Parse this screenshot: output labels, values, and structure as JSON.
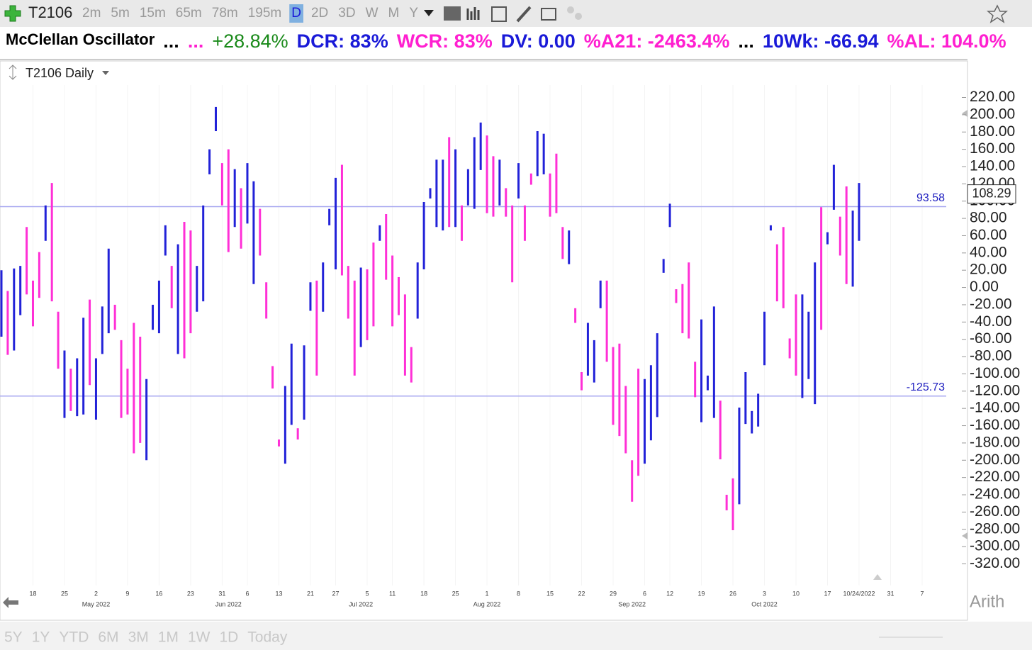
{
  "toolbar": {
    "symbol": "T2106",
    "intervals": [
      "2m",
      "5m",
      "15m",
      "65m",
      "78m",
      "195m",
      "D",
      "2D",
      "3D",
      "W",
      "M",
      "Y"
    ],
    "active_interval_index": 6
  },
  "quote_bar": [
    {
      "text": "McClellan Oscillator",
      "color": "#000000"
    },
    {
      "text": "...",
      "color": "#000000"
    },
    {
      "text": "...",
      "color": "#ff1fd0"
    },
    {
      "text": "+28.84%",
      "color": "#1a8a1a"
    },
    {
      "text": "DCR: 83%",
      "color": "#1a1ad8"
    },
    {
      "text": "WCR: 83%",
      "color": "#ff1fd0"
    },
    {
      "text": "DV: 0.00",
      "color": "#1a1ad8"
    },
    {
      "text": "%A21: -2463.4%",
      "color": "#ff1fd0"
    },
    {
      "text": "...",
      "color": "#000000"
    },
    {
      "text": "10Wk: -66.94",
      "color": "#1a1ad8"
    },
    {
      "text": "%AL: 104.0%",
      "color": "#ff1fd0"
    }
  ],
  "chart_data": {
    "type": "hlbar",
    "title": "T2106 Daily",
    "categories": [
      null,
      null,
      null,
      null,
      null,
      null,
      null,
      null,
      null,
      null,
      null,
      null,
      null,
      null,
      null,
      null,
      null,
      null,
      null,
      null,
      null,
      null,
      null,
      null,
      null,
      null,
      null,
      null,
      null,
      null,
      null,
      null,
      null,
      null,
      null,
      null,
      null,
      null,
      null,
      null,
      null,
      null,
      null,
      null,
      null,
      null,
      null,
      null,
      null,
      null,
      null,
      null,
      null,
      null,
      null,
      null,
      null,
      null,
      null,
      null,
      null,
      null,
      null,
      null,
      null,
      null,
      null,
      null,
      null,
      null,
      null,
      null,
      null,
      null,
      null,
      null,
      null,
      null,
      null,
      null,
      null,
      null,
      null,
      null,
      null,
      null,
      null,
      null,
      null,
      null,
      null,
      null,
      null,
      null,
      null,
      null,
      null,
      null,
      null,
      null,
      null,
      null,
      null,
      null,
      null,
      null,
      null,
      null,
      null,
      null,
      null,
      null,
      null,
      null,
      null,
      null,
      null,
      null,
      null,
      null,
      null,
      null,
      null,
      null,
      null,
      null,
      null,
      null,
      null,
      null,
      null,
      null,
      null,
      null,
      null,
      null,
      null
    ],
    "high": [
      20,
      -4,
      22,
      25,
      70,
      8,
      41,
      95,
      121,
      -28,
      -73,
      -94,
      -82,
      -35,
      -14,
      -82,
      -22,
      45,
      -20,
      -61,
      -94,
      -41,
      -57,
      -106,
      -20,
      8,
      72,
      25,
      50,
      76,
      66,
      25,
      95,
      160,
      209,
      144,
      160,
      137,
      115,
      144,
      123,
      91,
      6,
      -91,
      -176,
      -114,
      -65,
      -163,
      -67,
      6,
      8,
      29,
      91,
      127,
      142,
      25,
      8,
      23,
      21,
      52,
      72,
      85,
      37,
      12,
      -8,
      -69,
      29,
      99,
      115,
      148,
      148,
      174,
      160,
      95,
      137,
      174,
      191,
      176,
      152,
      148,
      115,
      95,
      144,
      95,
      132,
      181,
      178,
      132,
      155,
      70,
      66,
      -24,
      -98,
      -41,
      -61,
      8,
      8,
      -69,
      -65,
      -114,
      -200,
      -94,
      -106,
      -90,
      -53,
      33,
      97,
      -2,
      4,
      29,
      -86,
      -37,
      -102,
      -22,
      -131,
      -240,
      -221,
      -139,
      -98,
      -143,
      -123,
      -28,
      72,
      50,
      70,
      -59,
      -8,
      -8,
      -28,
      29,
      93,
      64,
      142,
      82,
      117,
      89,
      121
    ],
    "low": [
      -57,
      -78,
      -73,
      -32,
      -8,
      -45,
      -12,
      54,
      -16,
      -94,
      -151,
      -143,
      -149,
      -147,
      -113,
      -153,
      -77,
      -53,
      -49,
      -151,
      -147,
      -192,
      -180,
      -200,
      -49,
      -53,
      37,
      -24,
      -77,
      -82,
      -53,
      -28,
      -16,
      131,
      181,
      95,
      41,
      70,
      45,
      74,
      4,
      37,
      -36,
      -117,
      -184,
      -204,
      -159,
      -176,
      -153,
      -27,
      -102,
      -28,
      72,
      21,
      14,
      -36,
      -102,
      -69,
      -61,
      -45,
      54,
      9,
      -45,
      -32,
      -102,
      -110,
      -36,
      21,
      103,
      70,
      66,
      70,
      70,
      54,
      95,
      91,
      136,
      86,
      82,
      95,
      82,
      6,
      103,
      54,
      119,
      129,
      131,
      82,
      86,
      33,
      27,
      -41,
      -119,
      -102,
      -110,
      -24,
      -86,
      -159,
      -172,
      -192,
      -248,
      -218,
      -204,
      -177,
      -150,
      17,
      70,
      -18,
      -53,
      -59,
      -127,
      -156,
      -119,
      -151,
      -199,
      -258,
      -281,
      -251,
      -158,
      -169,
      -161,
      -90,
      66,
      -16,
      -24,
      -82,
      -102,
      -128,
      -106,
      -135,
      -49,
      50,
      90,
      37,
      4,
      1,
      54
    ],
    "bar_colors": [
      "#2222d8",
      "#ff2fd6",
      "#2222d8",
      "#2222d8",
      "#ff2fd6",
      "#ff2fd6",
      "#ff2fd6",
      "#2222d8",
      "#ff2fd6",
      "#ff2fd6",
      "#2222d8",
      "#ff2fd6",
      "#2222d8",
      "#2222d8",
      "#ff2fd6",
      "#2222d8",
      "#2222d8",
      "#2222d8",
      "#ff2fd6",
      "#ff2fd6",
      "#ff2fd6",
      "#ff2fd6",
      "#ff2fd6",
      "#2222d8",
      "#2222d8",
      "#2222d8",
      "#2222d8",
      "#ff2fd6",
      "#2222d8",
      "#ff2fd6",
      "#ff2fd6",
      "#2222d8",
      "#2222d8",
      "#2222d8",
      "#2222d8",
      "#ff2fd6",
      "#ff2fd6",
      "#2222d8",
      "#ff2fd6",
      "#2222d8",
      "#2222d8",
      "#ff2fd6",
      "#ff2fd6",
      "#ff2fd6",
      "#ff2fd6",
      "#2222d8",
      "#2222d8",
      "#ff2fd6",
      "#2222d8",
      "#2222d8",
      "#ff2fd6",
      "#2222d8",
      "#2222d8",
      "#2222d8",
      "#ff2fd6",
      "#ff2fd6",
      "#ff2fd6",
      "#2222d8",
      "#ff2fd6",
      "#ff2fd6",
      "#2222d8",
      "#ff2fd6",
      "#ff2fd6",
      "#ff2fd6",
      "#ff2fd6",
      "#ff2fd6",
      "#2222d8",
      "#2222d8",
      "#2222d8",
      "#2222d8",
      "#2222d8",
      "#ff2fd6",
      "#2222d8",
      "#ff2fd6",
      "#2222d8",
      "#2222d8",
      "#2222d8",
      "#ff2fd6",
      "#ff2fd6",
      "#2222d8",
      "#ff2fd6",
      "#ff2fd6",
      "#2222d8",
      "#ff2fd6",
      "#ff2fd6",
      "#2222d8",
      "#2222d8",
      "#ff2fd6",
      "#ff2fd6",
      "#ff2fd6",
      "#2222d8",
      "#ff2fd6",
      "#ff2fd6",
      "#2222d8",
      "#2222d8",
      "#2222d8",
      "#ff2fd6",
      "#ff2fd6",
      "#ff2fd6",
      "#ff2fd6",
      "#ff2fd6",
      "#ff2fd6",
      "#2222d8",
      "#2222d8",
      "#2222d8",
      "#2222d8",
      "#2222d8",
      "#ff2fd6",
      "#ff2fd6",
      "#ff2fd6",
      "#ff2fd6",
      "#2222d8",
      "#2222d8",
      "#2222d8",
      "#ff2fd6",
      "#ff2fd6",
      "#ff2fd6",
      "#2222d8",
      "#2222d8",
      "#2222d8",
      "#2222d8",
      "#2222d8",
      "#2222d8",
      "#ff2fd6",
      "#ff2fd6",
      "#ff2fd6",
      "#ff2fd6",
      "#2222d8",
      "#2222d8",
      "#2222d8",
      "#ff2fd6",
      "#2222d8",
      "#2222d8",
      "#ff2fd6",
      "#ff2fd6",
      "#2222d8",
      "#2222d8"
    ],
    "ylim": [
      -336,
      236
    ],
    "yticks": [
      {
        "value": 220,
        "label": "220.00"
      },
      {
        "value": 200,
        "label": "200.00"
      },
      {
        "value": 180,
        "label": "180.00"
      },
      {
        "value": 160,
        "label": "160.00"
      },
      {
        "value": 140,
        "label": "140.00"
      },
      {
        "value": 120,
        "label": "120.00"
      },
      {
        "value": 100,
        "label": "100.00"
      },
      {
        "value": 80,
        "label": "80.00"
      },
      {
        "value": 60,
        "label": "60.00"
      },
      {
        "value": 40,
        "label": "40.00"
      },
      {
        "value": 20,
        "label": "20.00"
      },
      {
        "value": 0,
        "label": "0.00"
      },
      {
        "value": -20,
        "label": "-20.00"
      },
      {
        "value": -40,
        "label": "-40.00"
      },
      {
        "value": -60,
        "label": "-60.00"
      },
      {
        "value": -80,
        "label": "-80.00"
      },
      {
        "value": -100,
        "label": "-100.00"
      },
      {
        "value": -120,
        "label": "-120.00"
      },
      {
        "value": -140,
        "label": "-140.00"
      },
      {
        "value": -160,
        "label": "-160.00"
      },
      {
        "value": -180,
        "label": "-180.00"
      },
      {
        "value": -200,
        "label": "-200.00"
      },
      {
        "value": -220,
        "label": "-220.00"
      },
      {
        "value": -240,
        "label": "-240.00"
      },
      {
        "value": -260,
        "label": "-260.00"
      },
      {
        "value": -280,
        "label": "-280.00"
      },
      {
        "value": -300,
        "label": "-300.00"
      },
      {
        "value": -320,
        "label": "-320.00"
      }
    ],
    "xticks": [
      {
        "value": 5,
        "label": "18"
      },
      {
        "value": 10,
        "label": "25"
      },
      {
        "value": 15,
        "label": "2"
      },
      {
        "value": 20,
        "label": "9"
      },
      {
        "value": 25,
        "label": "16"
      },
      {
        "value": 30,
        "label": "23"
      },
      {
        "value": 35,
        "label": "31"
      },
      {
        "value": 39,
        "label": "6"
      },
      {
        "value": 44,
        "label": "13"
      },
      {
        "value": 49,
        "label": "21"
      },
      {
        "value": 53,
        "label": "27"
      },
      {
        "value": 58,
        "label": "5"
      },
      {
        "value": 62,
        "label": "11"
      },
      {
        "value": 67,
        "label": "18"
      },
      {
        "value": 72,
        "label": "25"
      },
      {
        "value": 77,
        "label": "1"
      },
      {
        "value": 82,
        "label": "8"
      },
      {
        "value": 87,
        "label": "15"
      },
      {
        "value": 92,
        "label": "22"
      },
      {
        "value": 97,
        "label": "29"
      },
      {
        "value": 102,
        "label": "6"
      },
      {
        "value": 106,
        "label": "12"
      },
      {
        "value": 111,
        "label": "19"
      },
      {
        "value": 116,
        "label": "26"
      },
      {
        "value": 121,
        "label": "3"
      },
      {
        "value": 126,
        "label": "10"
      },
      {
        "value": 131,
        "label": "17"
      },
      {
        "value": 136,
        "label": "10/24/2022"
      },
      {
        "value": 141,
        "label": "31"
      },
      {
        "value": 146,
        "label": "7"
      }
    ],
    "month_ticks": [
      {
        "value": 15,
        "label": "May 2022"
      },
      {
        "value": 36,
        "label": "Jun 2022"
      },
      {
        "value": 57,
        "label": "Jul 2022"
      },
      {
        "value": 77,
        "label": "Aug 2022"
      },
      {
        "value": 100,
        "label": "Sep 2022"
      },
      {
        "value": 121,
        "label": "Oct 2022"
      }
    ],
    "hlines": [
      93.58,
      -125.73
    ],
    "hline_color": "#a8a8f0",
    "last_value": 108.29,
    "grid": false,
    "scale_mode": "Arith"
  },
  "ranges": [
    "5Y",
    "1Y",
    "YTD",
    "6M",
    "3M",
    "1M",
    "1W",
    "1D",
    "Today"
  ]
}
